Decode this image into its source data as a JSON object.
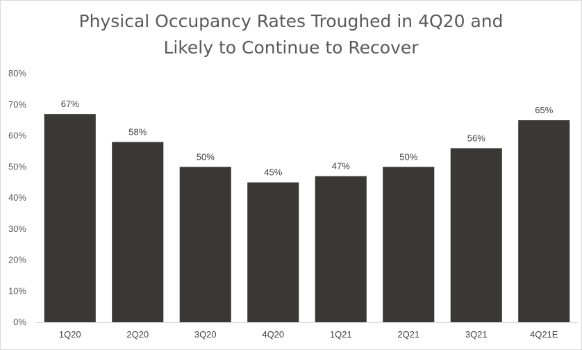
{
  "chart_data": {
    "type": "bar",
    "title_line1": "Physical Occupancy Rates Troughed in 4Q20 and",
    "title_line2": "Likely to Continue to Recover",
    "categories": [
      "1Q20",
      "2Q20",
      "3Q20",
      "4Q20",
      "1Q21",
      "2Q21",
      "3Q21",
      "4Q21E"
    ],
    "values": [
      67,
      58,
      50,
      45,
      47,
      50,
      56,
      65
    ],
    "data_labels": [
      "67%",
      "58%",
      "50%",
      "45%",
      "47%",
      "50%",
      "56%",
      "65%"
    ],
    "y_ticks": [
      "0%",
      "10%",
      "20%",
      "30%",
      "40%",
      "50%",
      "60%",
      "70%",
      "80%"
    ],
    "ylim": [
      0,
      80
    ],
    "xlabel": "",
    "ylabel": "",
    "grid": false,
    "legend": "none",
    "bar_color": "#3a3836"
  }
}
